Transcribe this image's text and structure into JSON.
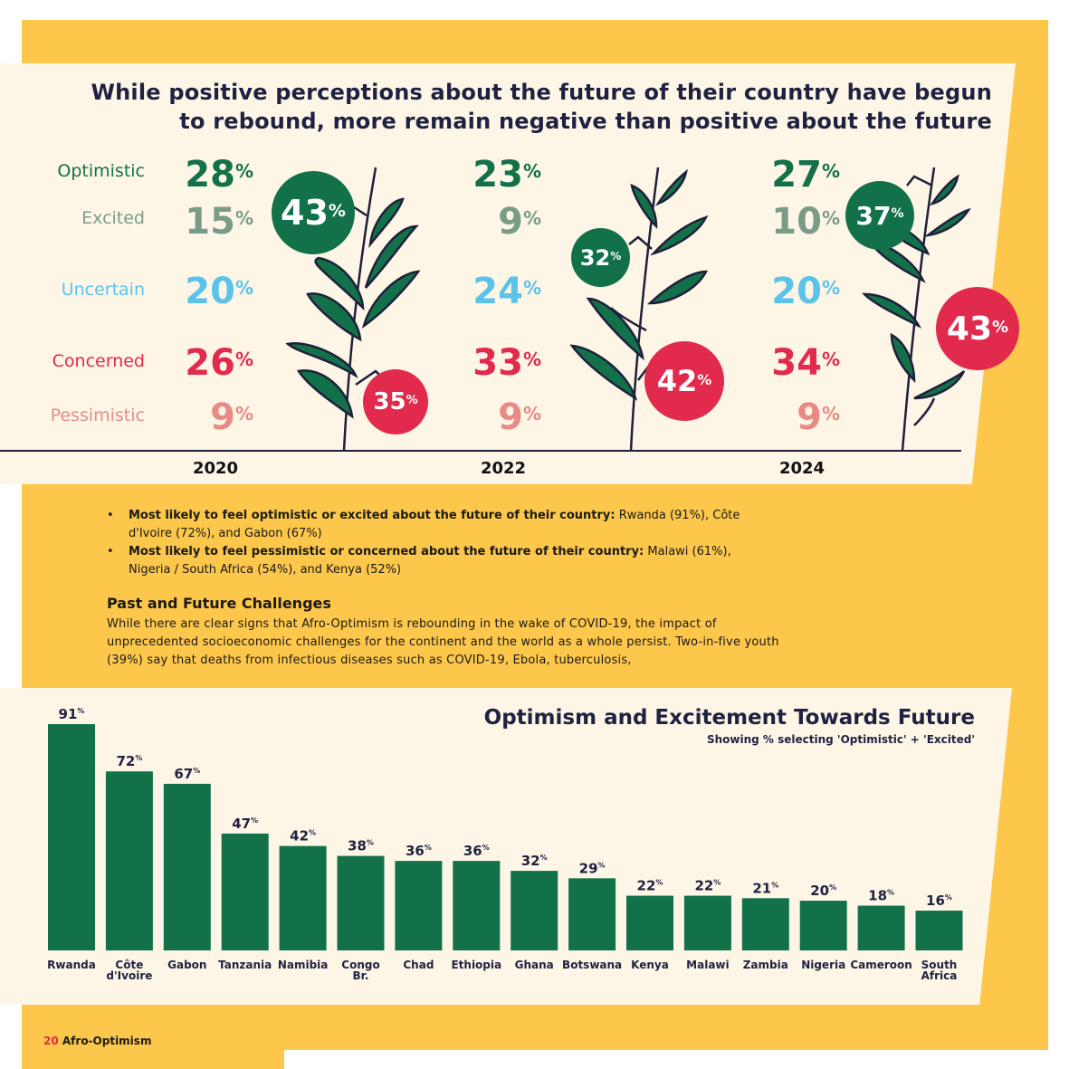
{
  "headline": {
    "line1": "While positive perceptions about the future of their country have begun",
    "line2": "to rebound, more remain negative than positive about the future"
  },
  "categories": [
    {
      "label": "Optimistic",
      "color": "#13714a"
    },
    {
      "label": "Excited",
      "color": "#7a9c87"
    },
    {
      "label": "Uncertain",
      "color": "#5bc3ea"
    },
    {
      "label": "Concerned",
      "color": "#e12a4c"
    },
    {
      "label": "Pessimistic",
      "color": "#e88b86"
    }
  ],
  "years": [
    {
      "year": "2020",
      "values": [
        "28",
        "15",
        "20",
        "26",
        "9"
      ],
      "positive": "43",
      "negative": "35"
    },
    {
      "year": "2022",
      "values": [
        "23",
        "9",
        "24",
        "33",
        "9"
      ],
      "positive": "32",
      "negative": "42"
    },
    {
      "year": "2024",
      "values": [
        "27",
        "10",
        "20",
        "34",
        "9"
      ],
      "positive": "37",
      "negative": "43"
    }
  ],
  "percent_sign": "%",
  "bullets": [
    {
      "bold": "Most likely to feel optimistic or excited about the future of their country:",
      "text": " Rwanda (91%), Côte d'Ivoire (72%), and Gabon (67%)"
    },
    {
      "bold": "Most likely to feel pessimistic or concerned about the future of their country:",
      "text": " Malawi (61%), Nigeria / South Africa (54%), and Kenya (52%)"
    }
  ],
  "bullet_marker": "•",
  "section": {
    "title": "Past and Future Challenges",
    "body": "While there are clear signs that Afro-Optimism is rebounding in the wake of COVID-19, the impact of unprecedented socioeconomic challenges for the continent and the world as a whole persist. Two-in-five youth (39%) say that deaths from infectious diseases such as COVID-19, Ebola, tuberculosis,"
  },
  "chart_data": {
    "type": "bar",
    "title": "Optimism and Excitement Towards Future",
    "subtitle": "Showing % selecting 'Optimistic' + 'Excited'",
    "categories": [
      "Rwanda",
      "Côte d'Ivoire",
      "Gabon",
      "Tanzania",
      "Namibia",
      "Congo Br.",
      "Chad",
      "Ethiopia",
      "Ghana",
      "Botswana",
      "Kenya",
      "Malawi",
      "Zambia",
      "Nigeria",
      "Cameroon",
      "South Africa"
    ],
    "category_lines": [
      [
        "Rwanda"
      ],
      [
        "Côte",
        "d'Ivoire"
      ],
      [
        "Gabon"
      ],
      [
        "Tanzania"
      ],
      [
        "Namibia"
      ],
      [
        "Congo",
        "Br."
      ],
      [
        "Chad"
      ],
      [
        "Ethiopia"
      ],
      [
        "Ghana"
      ],
      [
        "Botswana"
      ],
      [
        "Kenya"
      ],
      [
        "Malawi"
      ],
      [
        "Zambia"
      ],
      [
        "Nigeria"
      ],
      [
        "Cameroon"
      ],
      [
        "South",
        "Africa"
      ]
    ],
    "values": [
      91,
      72,
      67,
      47,
      42,
      38,
      36,
      36,
      32,
      29,
      22,
      22,
      21,
      20,
      18,
      16
    ],
    "unit": "%",
    "ylim": [
      0,
      100
    ],
    "bar_color": "#13714a"
  },
  "footer": {
    "page_number": "20",
    "label": "Afro-Optimism"
  }
}
